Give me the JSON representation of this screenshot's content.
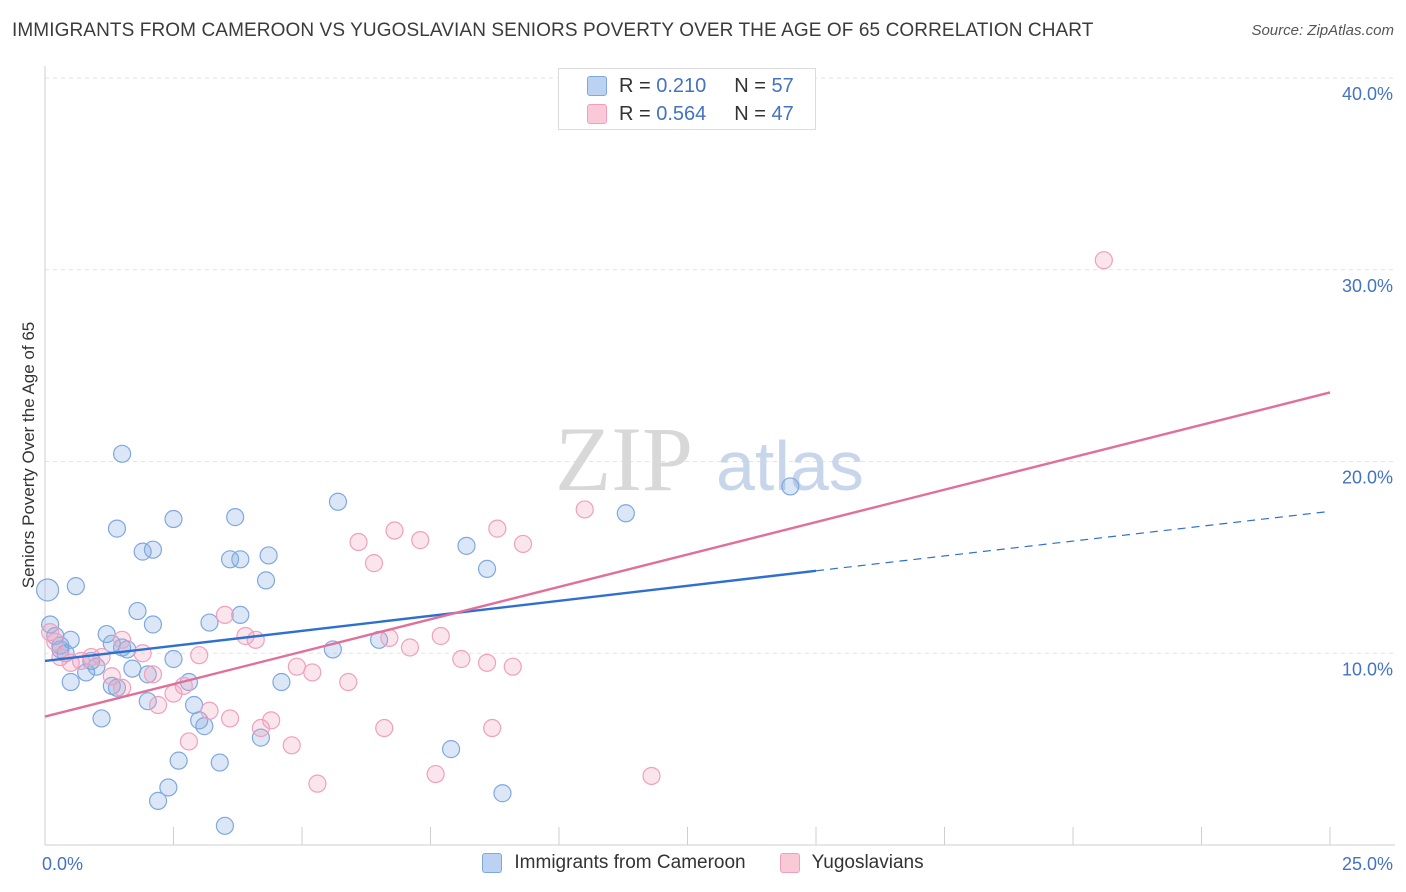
{
  "chart_data": {
    "type": "scatter",
    "title": "IMMIGRANTS FROM CAMEROON VS YUGOSLAVIAN SENIORS POVERTY OVER THE AGE OF 65 CORRELATION CHART",
    "source": "Source: ZipAtlas.com",
    "ylabel": "Seniors Poverty Over the Age of 65",
    "xlim": [
      0,
      25
    ],
    "ylim": [
      0,
      40
    ],
    "x_tick_labels": [
      {
        "value": 0,
        "label": "0.0%"
      },
      {
        "value": 25,
        "label": "25.0%"
      }
    ],
    "y_tick_labels": [
      {
        "value": 10,
        "label": "10.0%"
      },
      {
        "value": 20,
        "label": "20.0%"
      },
      {
        "value": 30,
        "label": "30.0%"
      },
      {
        "value": 40,
        "label": "40.0%"
      }
    ],
    "watermark": {
      "part1": "ZIP",
      "part2": "atlas"
    },
    "series": [
      {
        "name": "Immigrants from Cameroon",
        "color": "#7fa8e0",
        "fill": "rgba(127,168,224,0.28)",
        "line_color": "#2f6fcf",
        "R": "0.210",
        "N": "57",
        "trend": {
          "x0": 0,
          "y0": 9.6,
          "x1": 15,
          "y1": 14.3,
          "dashed_to": 25,
          "dashed_y": 17.4
        },
        "points": [
          [
            0.05,
            13.3
          ],
          [
            0.1,
            11.5
          ],
          [
            0.2,
            10.9
          ],
          [
            0.3,
            10.2
          ],
          [
            0.4,
            10.0
          ],
          [
            0.5,
            8.5
          ],
          [
            0.6,
            13.5
          ],
          [
            0.5,
            10.7
          ],
          [
            0.8,
            9.0
          ],
          [
            0.9,
            9.6
          ],
          [
            1.0,
            9.3
          ],
          [
            1.1,
            6.6
          ],
          [
            1.2,
            11.0
          ],
          [
            1.3,
            8.3
          ],
          [
            1.4,
            8.2
          ],
          [
            1.4,
            16.5
          ],
          [
            1.5,
            10.3
          ],
          [
            1.5,
            20.4
          ],
          [
            1.6,
            10.2
          ],
          [
            1.7,
            9.2
          ],
          [
            1.8,
            12.2
          ],
          [
            1.9,
            15.3
          ],
          [
            2.0,
            8.9
          ],
          [
            2.0,
            7.5
          ],
          [
            2.1,
            11.5
          ],
          [
            2.1,
            15.4
          ],
          [
            2.2,
            2.3
          ],
          [
            2.4,
            3.0
          ],
          [
            2.5,
            9.7
          ],
          [
            2.5,
            17.0
          ],
          [
            2.6,
            4.4
          ],
          [
            2.8,
            8.5
          ],
          [
            2.9,
            7.3
          ],
          [
            3.0,
            6.5
          ],
          [
            3.1,
            6.2
          ],
          [
            3.2,
            11.6
          ],
          [
            3.4,
            4.3
          ],
          [
            3.5,
            1.0
          ],
          [
            3.6,
            14.9
          ],
          [
            3.7,
            17.1
          ],
          [
            3.8,
            12.0
          ],
          [
            3.8,
            14.9
          ],
          [
            4.2,
            5.6
          ],
          [
            4.3,
            13.8
          ],
          [
            4.35,
            15.1
          ],
          [
            4.6,
            8.5
          ],
          [
            5.6,
            10.2
          ],
          [
            5.7,
            17.9
          ],
          [
            6.5,
            10.7
          ],
          [
            7.9,
            5.0
          ],
          [
            8.2,
            15.6
          ],
          [
            8.6,
            14.4
          ],
          [
            8.9,
            2.7
          ],
          [
            11.3,
            17.3
          ],
          [
            14.5,
            18.7
          ],
          [
            0.3,
            10.4
          ],
          [
            1.3,
            10.5
          ]
        ]
      },
      {
        "name": "Yugoslavians",
        "color": "#f0a0bc",
        "fill": "rgba(240,160,188,0.28)",
        "line_color": "#e0709a",
        "R": "0.564",
        "N": "47",
        "trend": {
          "x0": 0,
          "y0": 6.7,
          "x1": 25,
          "y1": 23.6
        },
        "points": [
          [
            0.1,
            11.1
          ],
          [
            0.2,
            10.6
          ],
          [
            0.3,
            9.8
          ],
          [
            0.5,
            9.5
          ],
          [
            0.7,
            9.6
          ],
          [
            0.9,
            9.8
          ],
          [
            1.1,
            9.8
          ],
          [
            1.3,
            8.8
          ],
          [
            1.5,
            8.2
          ],
          [
            1.5,
            10.7
          ],
          [
            1.9,
            10.0
          ],
          [
            2.1,
            8.9
          ],
          [
            2.2,
            7.3
          ],
          [
            2.5,
            7.9
          ],
          [
            2.7,
            8.3
          ],
          [
            2.8,
            5.4
          ],
          [
            3.0,
            9.9
          ],
          [
            3.2,
            7.0
          ],
          [
            3.5,
            12.0
          ],
          [
            3.6,
            6.6
          ],
          [
            3.9,
            10.9
          ],
          [
            4.1,
            10.7
          ],
          [
            4.2,
            6.1
          ],
          [
            4.4,
            6.5
          ],
          [
            4.8,
            5.2
          ],
          [
            4.9,
            9.3
          ],
          [
            5.2,
            9.0
          ],
          [
            5.3,
            3.2
          ],
          [
            5.9,
            8.5
          ],
          [
            6.1,
            15.8
          ],
          [
            6.4,
            14.7
          ],
          [
            6.6,
            6.1
          ],
          [
            6.7,
            10.8
          ],
          [
            6.8,
            16.4
          ],
          [
            7.1,
            10.3
          ],
          [
            7.3,
            15.9
          ],
          [
            7.6,
            3.7
          ],
          [
            7.7,
            10.9
          ],
          [
            8.1,
            9.7
          ],
          [
            8.6,
            9.5
          ],
          [
            8.7,
            6.1
          ],
          [
            8.8,
            16.5
          ],
          [
            9.1,
            9.3
          ],
          [
            9.3,
            15.7
          ],
          [
            10.5,
            17.5
          ],
          [
            11.8,
            3.6
          ],
          [
            20.6,
            30.5
          ]
        ]
      }
    ]
  }
}
